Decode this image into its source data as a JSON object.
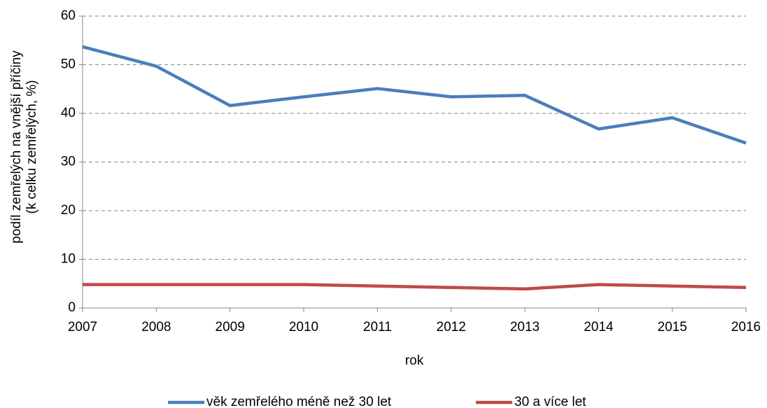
{
  "chart_data": {
    "type": "line",
    "ylabel": [
      "podíl zemřelých na vnější příčiny",
      "(k celku zemřelých, %)"
    ],
    "xlabel": "rok",
    "x": [
      2007,
      2008,
      2009,
      2010,
      2011,
      2012,
      2013,
      2014,
      2015,
      2016
    ],
    "xlim": [
      2007,
      2016
    ],
    "xticks": [
      2007,
      2008,
      2009,
      2010,
      2011,
      2012,
      2013,
      2014,
      2015,
      2016
    ],
    "ylim": [
      0,
      60
    ],
    "yticks": [
      0,
      10,
      20,
      30,
      40,
      50,
      60
    ],
    "grid": true,
    "legend": "bottom",
    "series": [
      {
        "name": "věk zemřelého méně než 30 let",
        "color": "#4a7ebb",
        "values": [
          53.7,
          49.7,
          41.6,
          43.4,
          45.1,
          43.4,
          43.7,
          36.8,
          39.1,
          33.9
        ]
      },
      {
        "name": "30 a více let",
        "color": "#be4b48",
        "values": [
          4.8,
          4.8,
          4.8,
          4.8,
          4.5,
          4.2,
          3.9,
          4.8,
          4.5,
          4.2
        ]
      }
    ]
  }
}
